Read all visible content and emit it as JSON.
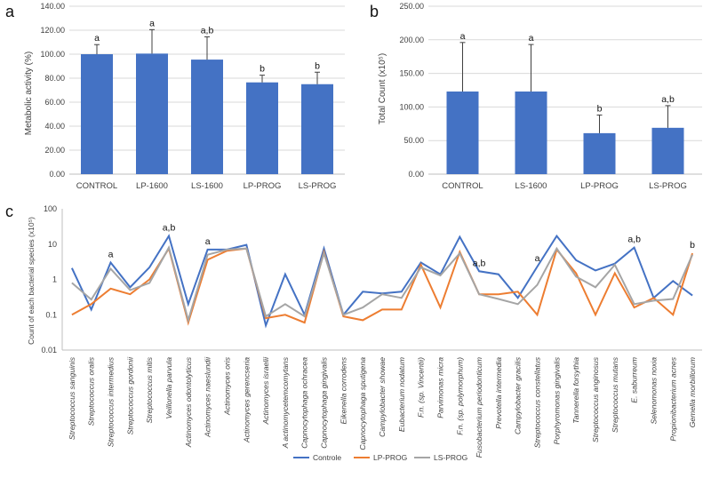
{
  "chart_data": [
    {
      "panel": "a",
      "type": "bar",
      "ylabel": "Metabolic activity  (%)",
      "ylim": [
        0,
        140
      ],
      "yticks": [
        "0.00",
        "20.00",
        "40.00",
        "60.00",
        "80.00",
        "100.00",
        "120.00",
        "140.00"
      ],
      "categories": [
        "CONTROL",
        "LP-1600",
        "LS-1600",
        "LP-PROG",
        "LS-PROG"
      ],
      "values": [
        100,
        100.5,
        95.5,
        76.5,
        75
      ],
      "errors": [
        8,
        20,
        19,
        6,
        10
      ],
      "sig": [
        "a",
        "a",
        "a,b",
        "b",
        "b"
      ],
      "color": "#4472c4"
    },
    {
      "panel": "b",
      "type": "bar",
      "ylabel": "Total Count (x10⁵)",
      "ylim": [
        0,
        250
      ],
      "yticks": [
        "0.00",
        "50.00",
        "100.00",
        "150.00",
        "200.00",
        "250.00"
      ],
      "categories": [
        "CONTROL",
        "LS-1600",
        "LP-PROG",
        "LS-PROG"
      ],
      "values": [
        123,
        123,
        61,
        69
      ],
      "errors": [
        73,
        70,
        27,
        33
      ],
      "sig": [
        "a",
        "a",
        "b",
        "a,b"
      ],
      "color": "#4472c4"
    },
    {
      "panel": "c",
      "type": "line",
      "yscale": "log",
      "ylabel": "Count of each bacterial species (x10⁵)",
      "yticks": [
        "0.01",
        "0.1",
        "1",
        "10",
        "100"
      ],
      "categories": [
        "Streptococcus sanguinis",
        "Streptococcus oralis",
        "Streptococcus intermedius",
        "Streptococcus gordonii",
        "Streptococcus mitis",
        "Veillonella parvula",
        "Actinomyces odontolyticus",
        "Actinomyces naeslundii",
        "Actinomyces oris",
        "Actinomyces gerencseria",
        "Actinomyces israelii",
        "A actinomycetemcomytans",
        "Capnocytophaga ochracea",
        "Capnocytophaga gingivalis",
        "Eikenella corrodens",
        "Capnocytophaga sputigena",
        "Campylobacter showae",
        "Eubacterium nodatum",
        "F.n. (sp. Vincentii)",
        "Parvimonas micra",
        "F.n. (sp. polymorphum)",
        "Fusobacterium periodonticum",
        "Prevotella intermedia",
        "Campylobacter gracilis",
        "Streptococcus constellatus",
        "Porphyromonas gingivalis",
        "Tannerella forsythia",
        "Streptococcus anginosus",
        "Streptococcus mutans",
        "E. saburreum",
        "Selenomonas noxia",
        "Propionibacterium acnes",
        "Gemella morbillorum"
      ],
      "series": [
        {
          "name": "Controle",
          "color": "#4472c4",
          "values": [
            2.1,
            0.14,
            3.0,
            0.6,
            2.2,
            17,
            0.2,
            7,
            7,
            9.5,
            0.05,
            1.4,
            0.1,
            7.5,
            0.1,
            0.45,
            0.4,
            0.45,
            3.0,
            1.4,
            16,
            1.7,
            1.4,
            0.3,
            2.3,
            17,
            3.5,
            1.8,
            2.8,
            8,
            0.3,
            0.9,
            0.35
          ]
        },
        {
          "name": "LP-PROG",
          "color": "#ed7d31",
          "values": [
            0.1,
            0.2,
            0.55,
            0.38,
            1.0,
            7.5,
            0.06,
            3.6,
            6.5,
            7.5,
            0.08,
            0.1,
            0.06,
            6.0,
            0.09,
            0.07,
            0.14,
            0.14,
            2.6,
            0.16,
            6.0,
            0.38,
            0.38,
            0.45,
            0.1,
            7,
            1.5,
            0.1,
            1.5,
            0.16,
            0.3,
            0.1,
            5.5
          ]
        },
        {
          "name": "LS-PROG",
          "color": "#a5a5a5",
          "values": [
            0.8,
            0.27,
            2.0,
            0.5,
            0.8,
            8.0,
            0.07,
            5.0,
            7.0,
            7.5,
            0.09,
            0.2,
            0.09,
            5.5,
            0.1,
            0.16,
            0.38,
            0.3,
            2.2,
            1.3,
            5.5,
            0.38,
            0.28,
            0.2,
            0.7,
            7.5,
            1.2,
            0.6,
            2.6,
            0.2,
            0.25,
            0.28,
            5.0
          ]
        }
      ],
      "annotations": [
        {
          "label": "a",
          "index": 2,
          "value": 3.0
        },
        {
          "label": "a,b",
          "index": 5,
          "value": 17
        },
        {
          "label": "a",
          "index": 7,
          "value": 7
        },
        {
          "label": "a,b",
          "index": 21,
          "value": 1.7
        },
        {
          "label": "a",
          "index": 24,
          "value": 2.3
        },
        {
          "label": "a,b",
          "index": 29,
          "value": 8
        },
        {
          "label": "b",
          "index": 32,
          "value": 5.5
        }
      ]
    }
  ]
}
